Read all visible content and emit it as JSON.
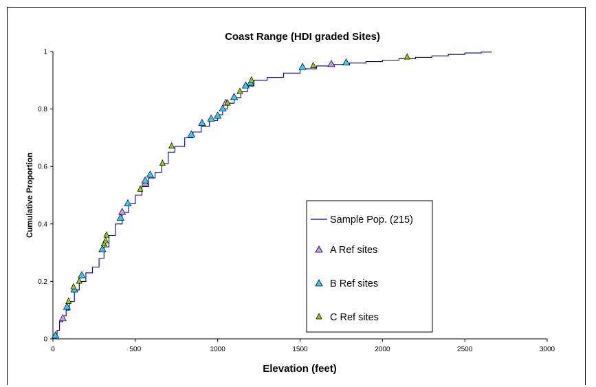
{
  "chart_data": {
    "type": "line",
    "title": "Coast Range (HDI graded Sites)",
    "xlabel": "Elevation (feet)",
    "ylabel": "Cumulative Proportion",
    "xlim": [
      0,
      3000
    ],
    "ylim": [
      0,
      1
    ],
    "x_ticks": [
      0,
      500,
      1000,
      1500,
      2000,
      2500,
      3000
    ],
    "y_ticks": [
      0,
      0.2,
      0.4,
      0.6,
      0.8,
      1
    ],
    "y_tick_labels": [
      "0",
      "0.2",
      "0.4",
      "0.6",
      "0.8",
      "1"
    ],
    "grid": false,
    "legend_position": "right",
    "series": [
      {
        "name": "Sample Pop. (215)",
        "kind": "line",
        "color": "#000080",
        "points": [
          [
            0,
            0
          ],
          [
            15,
            0.01
          ],
          [
            25,
            0.03
          ],
          [
            40,
            0.06
          ],
          [
            60,
            0.08
          ],
          [
            80,
            0.1
          ],
          [
            100,
            0.13
          ],
          [
            130,
            0.17
          ],
          [
            160,
            0.2
          ],
          [
            200,
            0.23
          ],
          [
            240,
            0.25
          ],
          [
            280,
            0.28
          ],
          [
            310,
            0.32
          ],
          [
            340,
            0.36
          ],
          [
            380,
            0.4
          ],
          [
            420,
            0.44
          ],
          [
            460,
            0.47
          ],
          [
            500,
            0.5
          ],
          [
            540,
            0.53
          ],
          [
            580,
            0.56
          ],
          [
            620,
            0.58
          ],
          [
            660,
            0.61
          ],
          [
            700,
            0.65
          ],
          [
            740,
            0.67
          ],
          [
            800,
            0.7
          ],
          [
            850,
            0.72
          ],
          [
            900,
            0.74
          ],
          [
            950,
            0.76
          ],
          [
            1000,
            0.78
          ],
          [
            1030,
            0.8
          ],
          [
            1060,
            0.82
          ],
          [
            1100,
            0.84
          ],
          [
            1140,
            0.86
          ],
          [
            1180,
            0.88
          ],
          [
            1220,
            0.9
          ],
          [
            1300,
            0.91
          ],
          [
            1400,
            0.925
          ],
          [
            1500,
            0.94
          ],
          [
            1600,
            0.95
          ],
          [
            1700,
            0.955
          ],
          [
            1800,
            0.96
          ],
          [
            1900,
            0.965
          ],
          [
            2000,
            0.97
          ],
          [
            2100,
            0.975
          ],
          [
            2200,
            0.98
          ],
          [
            2300,
            0.985
          ],
          [
            2400,
            0.99
          ],
          [
            2500,
            0.995
          ],
          [
            2600,
            0.998
          ],
          [
            2660,
            1.0
          ]
        ]
      },
      {
        "name": "A Ref sites",
        "kind": "marker",
        "color": "#cc99ff",
        "points": [
          [
            60,
            0.07
          ],
          [
            300,
            0.31
          ],
          [
            420,
            0.44
          ],
          [
            560,
            0.54
          ],
          [
            1050,
            0.82
          ],
          [
            1690,
            0.955
          ]
        ]
      },
      {
        "name": "B Ref sites",
        "kind": "marker",
        "color": "#33ccff",
        "points": [
          [
            15,
            0.01
          ],
          [
            85,
            0.11
          ],
          [
            130,
            0.17
          ],
          [
            175,
            0.22
          ],
          [
            300,
            0.31
          ],
          [
            410,
            0.42
          ],
          [
            455,
            0.47
          ],
          [
            560,
            0.55
          ],
          [
            590,
            0.57
          ],
          [
            840,
            0.71
          ],
          [
            905,
            0.75
          ],
          [
            960,
            0.765
          ],
          [
            1000,
            0.775
          ],
          [
            1030,
            0.8
          ],
          [
            1100,
            0.84
          ],
          [
            1170,
            0.88
          ],
          [
            1200,
            0.89
          ],
          [
            1515,
            0.945
          ],
          [
            1780,
            0.96
          ]
        ]
      },
      {
        "name": "C Ref sites",
        "kind": "marker",
        "color": "#99cc00",
        "points": [
          [
            95,
            0.13
          ],
          [
            125,
            0.18
          ],
          [
            160,
            0.2
          ],
          [
            310,
            0.33
          ],
          [
            320,
            0.34
          ],
          [
            325,
            0.36
          ],
          [
            530,
            0.52
          ],
          [
            665,
            0.61
          ],
          [
            720,
            0.67
          ],
          [
            1060,
            0.82
          ],
          [
            1135,
            0.86
          ],
          [
            1205,
            0.9
          ],
          [
            1580,
            0.95
          ],
          [
            2150,
            0.98
          ]
        ]
      }
    ]
  }
}
